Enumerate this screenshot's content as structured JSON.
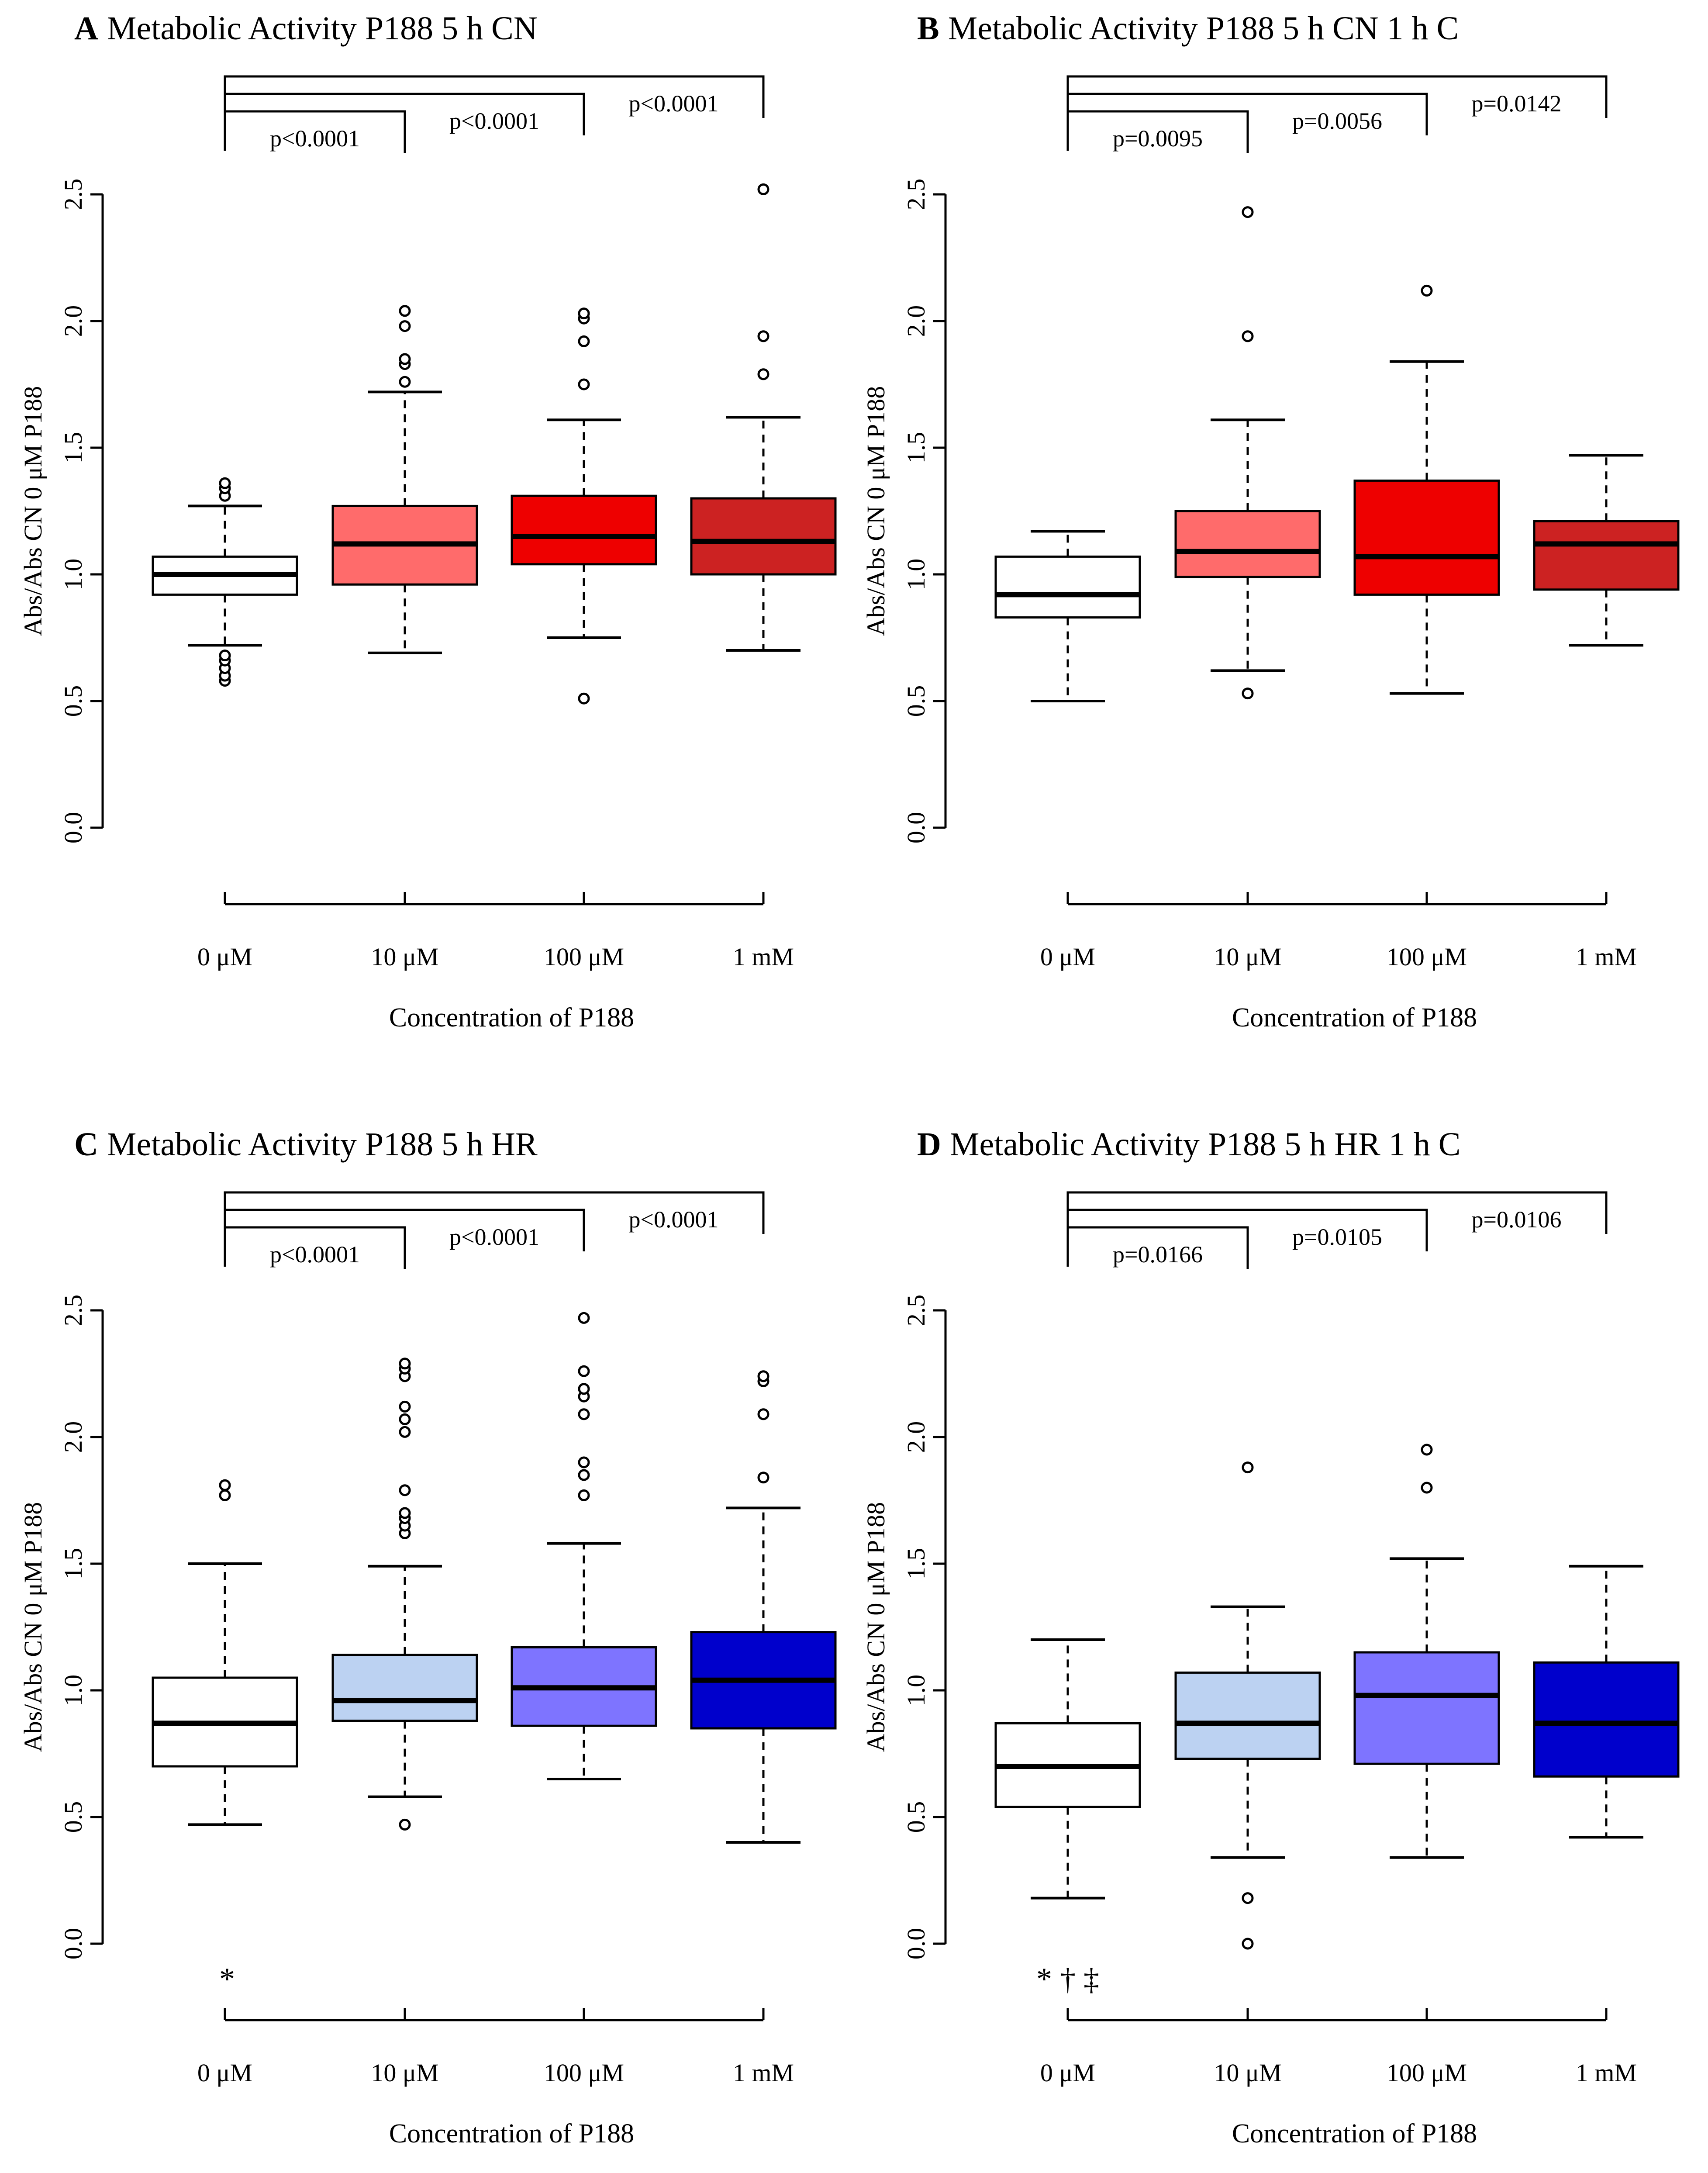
{
  "figure": {
    "y_axis_label": "Abs/Abs CN 0 μM P188",
    "x_axis_label": "Concentration of P188"
  },
  "chart_data": [
    {
      "type": "box",
      "panel": "A",
      "title": "Metabolic Activity P188 5 h CN",
      "xlabel": "Concentration of P188",
      "ylabel": "Abs/Abs CN 0 μM P188",
      "ylim": [
        0,
        2.5
      ],
      "yticks": [
        "0.0",
        "0.5",
        "1.0",
        "1.5",
        "2.0",
        "2.5"
      ],
      "categories": [
        "0 μM",
        "10 μM",
        "100 μM",
        "1 mM"
      ],
      "colors": [
        "#ffffff",
        "#ff6b6b",
        "#ee0000",
        "#cc2222"
      ],
      "boxes": [
        {
          "whisker_low": 0.72,
          "q1": 0.92,
          "median": 1.0,
          "q3": 1.07,
          "whisker_high": 1.27,
          "outliers": [
            0.58,
            0.6,
            0.63,
            0.66,
            0.68,
            1.31,
            1.34,
            1.36
          ]
        },
        {
          "whisker_low": 0.69,
          "q1": 0.96,
          "median": 1.12,
          "q3": 1.27,
          "whisker_high": 1.72,
          "outliers": [
            1.76,
            1.83,
            1.85,
            1.98,
            2.04
          ]
        },
        {
          "whisker_low": 0.75,
          "q1": 1.04,
          "median": 1.15,
          "q3": 1.31,
          "whisker_high": 1.61,
          "outliers": [
            0.51,
            1.75,
            1.92,
            2.01,
            2.03
          ]
        },
        {
          "whisker_low": 0.7,
          "q1": 1.0,
          "median": 1.13,
          "q3": 1.3,
          "whisker_high": 1.62,
          "outliers": [
            1.79,
            1.94,
            2.52
          ]
        }
      ],
      "comparisons": [
        {
          "to": 1,
          "label": "p<0.0001"
        },
        {
          "to": 2,
          "label": "p<0.0001"
        },
        {
          "to": 3,
          "label": "p<0.0001"
        }
      ],
      "annotation": ""
    },
    {
      "type": "box",
      "panel": "B",
      "title": "Metabolic Activity P188 5 h CN 1 h C",
      "xlabel": "Concentration of P188",
      "ylabel": "Abs/Abs CN 0 μM P188",
      "ylim": [
        0,
        2.5
      ],
      "yticks": [
        "0.0",
        "0.5",
        "1.0",
        "1.5",
        "2.0",
        "2.5"
      ],
      "categories": [
        "0 μM",
        "10 μM",
        "100 μM",
        "1 mM"
      ],
      "colors": [
        "#ffffff",
        "#ff6b6b",
        "#ee0000",
        "#cc2222"
      ],
      "boxes": [
        {
          "whisker_low": 0.5,
          "q1": 0.83,
          "median": 0.92,
          "q3": 1.07,
          "whisker_high": 1.17,
          "outliers": []
        },
        {
          "whisker_low": 0.62,
          "q1": 0.99,
          "median": 1.09,
          "q3": 1.25,
          "whisker_high": 1.61,
          "outliers": [
            0.53,
            1.94,
            2.43
          ]
        },
        {
          "whisker_low": 0.53,
          "q1": 0.92,
          "median": 1.07,
          "q3": 1.37,
          "whisker_high": 1.84,
          "outliers": [
            2.12
          ]
        },
        {
          "whisker_low": 0.72,
          "q1": 0.94,
          "median": 1.12,
          "q3": 1.21,
          "whisker_high": 1.47,
          "outliers": []
        }
      ],
      "comparisons": [
        {
          "to": 1,
          "label": "p=0.0095"
        },
        {
          "to": 2,
          "label": "p=0.0056"
        },
        {
          "to": 3,
          "label": "p=0.0142"
        }
      ],
      "annotation": ""
    },
    {
      "type": "box",
      "panel": "C",
      "title": "Metabolic Activity P188 5 h HR",
      "xlabel": "Concentration of P188",
      "ylabel": "Abs/Abs CN 0 μM P188",
      "ylim": [
        0,
        2.5
      ],
      "yticks": [
        "0.0",
        "0.5",
        "1.0",
        "1.5",
        "2.0",
        "2.5"
      ],
      "categories": [
        "0 μM",
        "10 μM",
        "100 μM",
        "1 mM"
      ],
      "colors": [
        "#ffffff",
        "#bcd2f2",
        "#7e74ff",
        "#0000cc"
      ],
      "boxes": [
        {
          "whisker_low": 0.47,
          "q1": 0.7,
          "median": 0.87,
          "q3": 1.05,
          "whisker_high": 1.5,
          "outliers": [
            1.77,
            1.81
          ]
        },
        {
          "whisker_low": 0.58,
          "q1": 0.88,
          "median": 0.96,
          "q3": 1.14,
          "whisker_high": 1.49,
          "outliers": [
            0.47,
            1.62,
            1.65,
            1.68,
            1.7,
            1.79,
            2.02,
            2.07,
            2.12,
            2.24,
            2.27,
            2.29
          ]
        },
        {
          "whisker_low": 0.65,
          "q1": 0.86,
          "median": 1.01,
          "q3": 1.17,
          "whisker_high": 1.58,
          "outliers": [
            1.77,
            1.85,
            1.9,
            2.09,
            2.16,
            2.19,
            2.26,
            2.47
          ]
        },
        {
          "whisker_low": 0.4,
          "q1": 0.85,
          "median": 1.04,
          "q3": 1.23,
          "whisker_high": 1.72,
          "outliers": [
            1.84,
            2.09,
            2.22,
            2.24
          ]
        }
      ],
      "comparisons": [
        {
          "to": 1,
          "label": "p<0.0001"
        },
        {
          "to": 2,
          "label": "p<0.0001"
        },
        {
          "to": 3,
          "label": "p<0.0001"
        }
      ],
      "annotation": "*"
    },
    {
      "type": "box",
      "panel": "D",
      "title": "Metabolic Activity P188 5 h HR 1 h C",
      "xlabel": "Concentration of P188",
      "ylabel": "Abs/Abs CN 0 μM P188",
      "ylim": [
        0,
        2.5
      ],
      "yticks": [
        "0.0",
        "0.5",
        "1.0",
        "1.5",
        "2.0",
        "2.5"
      ],
      "categories": [
        "0 μM",
        "10 μM",
        "100 μM",
        "1 mM"
      ],
      "colors": [
        "#ffffff",
        "#bcd2f2",
        "#7e74ff",
        "#0000cc"
      ],
      "boxes": [
        {
          "whisker_low": 0.18,
          "q1": 0.54,
          "median": 0.7,
          "q3": 0.87,
          "whisker_high": 1.2,
          "outliers": []
        },
        {
          "whisker_low": 0.34,
          "q1": 0.73,
          "median": 0.87,
          "q3": 1.07,
          "whisker_high": 1.33,
          "outliers": [
            0.0,
            0.18,
            1.88
          ]
        },
        {
          "whisker_low": 0.34,
          "q1": 0.71,
          "median": 0.98,
          "q3": 1.15,
          "whisker_high": 1.52,
          "outliers": [
            1.8,
            1.95
          ]
        },
        {
          "whisker_low": 0.42,
          "q1": 0.66,
          "median": 0.87,
          "q3": 1.11,
          "whisker_high": 1.49,
          "outliers": []
        }
      ],
      "comparisons": [
        {
          "to": 1,
          "label": "p=0.0166"
        },
        {
          "to": 2,
          "label": "p=0.0105"
        },
        {
          "to": 3,
          "label": "p=0.0106"
        }
      ],
      "annotation": "* † ‡"
    }
  ]
}
